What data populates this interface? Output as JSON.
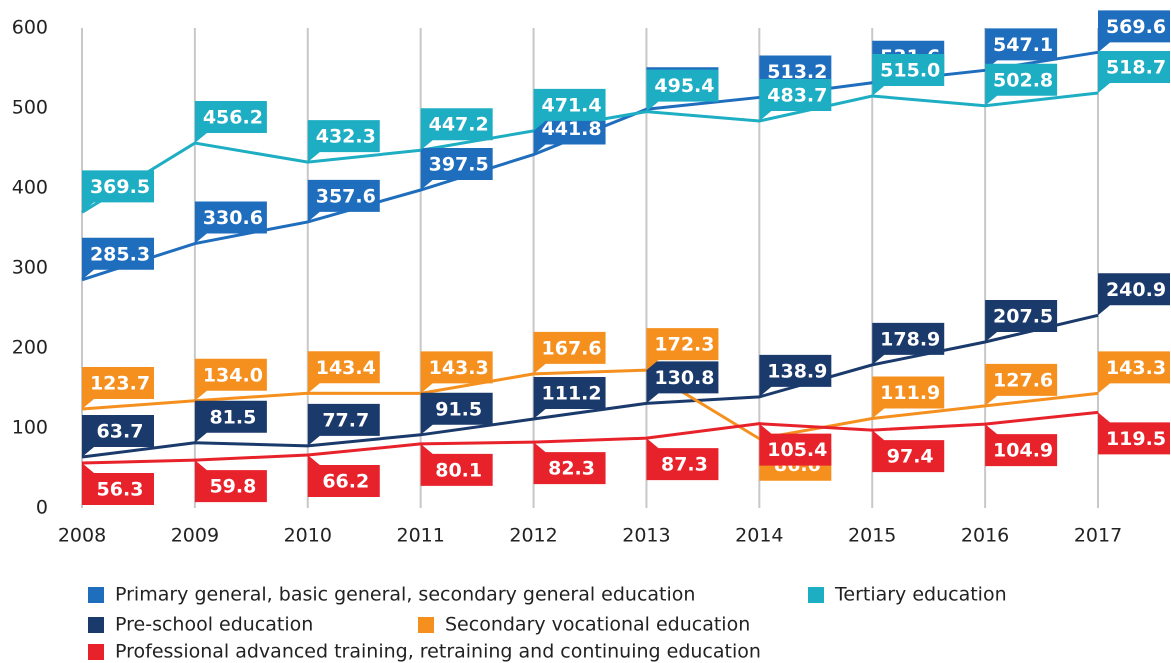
{
  "chart_data": {
    "type": "line",
    "categories": [
      "2008",
      "2009",
      "2010",
      "2011",
      "2012",
      "2013",
      "2014",
      "2015",
      "2016",
      "2017"
    ],
    "ylim": [
      0,
      600
    ],
    "yticks": [
      0,
      100,
      200,
      300,
      400,
      500,
      600
    ],
    "grid": false,
    "series": [
      {
        "name": "Primary general, basic general, secondary general education",
        "color": "#1f6dbd",
        "values": [
          285.3,
          330.6,
          357.6,
          397.5,
          441.8,
          498.4,
          513.2,
          531.6,
          547.1,
          569.6
        ],
        "value_labels": [
          "285.3",
          "330.6",
          "357.6",
          "397.5",
          "441.8",
          "498.4",
          "513.2",
          "531.6",
          "547.1",
          "569.6"
        ]
      },
      {
        "name": "Tertiary education",
        "color": "#1eaec4",
        "values": [
          369.5,
          456.2,
          432.3,
          447.2,
          471.4,
          495.4,
          483.7,
          515.0,
          502.8,
          518.7
        ],
        "value_labels": [
          "369.5",
          "456.2",
          "432.3",
          "447.2",
          "471.4",
          "495.4",
          "483.7",
          "515.0",
          "502.8",
          "518.7"
        ]
      },
      {
        "name": "Pre-school education",
        "color": "#1b3a6c",
        "values": [
          63.7,
          81.5,
          77.7,
          91.5,
          111.2,
          130.8,
          138.9,
          178.9,
          207.5,
          240.9
        ],
        "value_labels": [
          "63.7",
          "81.5",
          "77.7",
          "91.5",
          "111.2",
          "130.8",
          "138.9",
          "178.9",
          "207.5",
          "240.9"
        ]
      },
      {
        "name": "Secondary vocational education",
        "color": "#f5901f",
        "values": [
          123.7,
          134.0,
          143.4,
          143.3,
          167.6,
          172.3,
          86.6,
          111.9,
          127.6,
          143.3
        ],
        "value_labels": [
          "123.7",
          "134.0",
          "143.4",
          "143.3",
          "167.6",
          "172.3",
          "86.6",
          "111.9",
          "127.6",
          "143.3"
        ]
      },
      {
        "name": "Professional advanced training, retraining and continuing education",
        "color": "#e8222b",
        "values": [
          56.3,
          59.8,
          66.2,
          80.1,
          82.3,
          87.3,
          105.4,
          97.4,
          104.9,
          119.5
        ],
        "value_labels": [
          "56.3",
          "59.8",
          "66.2",
          "80.1",
          "82.3",
          "87.3",
          "105.4",
          "97.4",
          "104.9",
          "119.5"
        ]
      }
    ]
  }
}
